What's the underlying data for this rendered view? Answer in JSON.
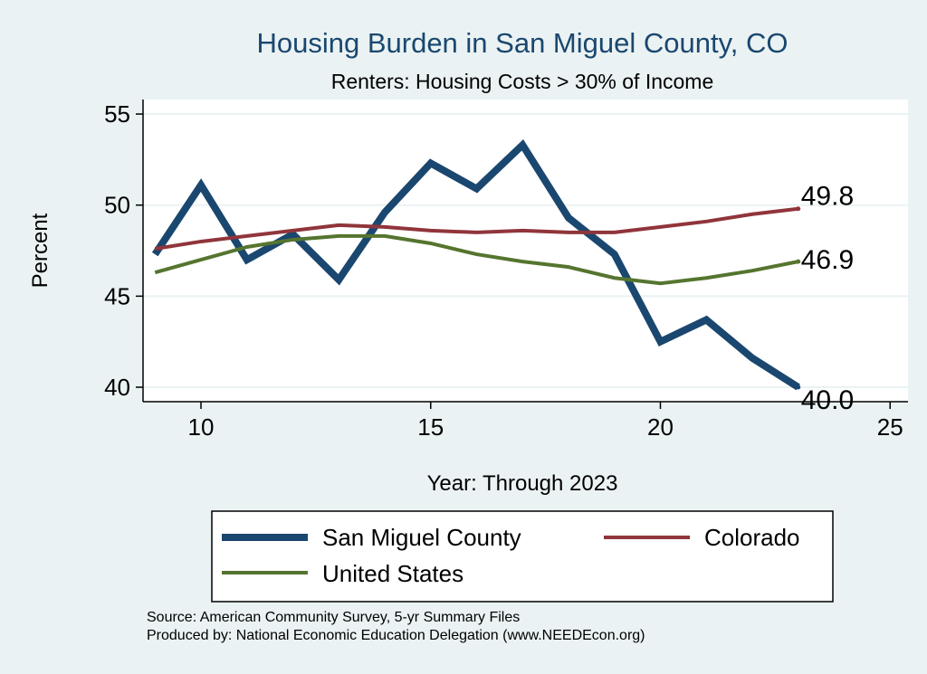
{
  "chart_data": {
    "type": "line",
    "title": "Housing Burden in San Miguel County, CO",
    "subtitle": "Renters: Housing Costs > 30% of Income",
    "xlabel": "Year: Through 2023",
    "ylabel": "Percent",
    "xlim": [
      8.7,
      25.3
    ],
    "ylim": [
      39.3,
      55.8
    ],
    "xticks": [
      "10",
      "15",
      "20",
      "25"
    ],
    "yticks": [
      "40",
      "45",
      "50",
      "55"
    ],
    "grid": true,
    "legend_position": "bottom",
    "x": [
      9,
      10,
      11,
      12,
      13,
      14,
      15,
      16,
      17,
      18,
      19,
      20,
      21,
      22,
      23
    ],
    "series": [
      {
        "name": "San Miguel County",
        "color": "#1a476f",
        "end_label": "40.0",
        "values": [
          47.3,
          51.1,
          47.0,
          48.4,
          45.9,
          49.6,
          52.3,
          50.9,
          53.3,
          49.3,
          47.3,
          42.5,
          43.7,
          41.6,
          40.0
        ]
      },
      {
        "name": "Colorado",
        "color": "#90353b",
        "end_label": "49.8",
        "values": [
          47.6,
          48.0,
          48.3,
          48.6,
          48.9,
          48.8,
          48.6,
          48.5,
          48.6,
          48.5,
          48.5,
          48.8,
          49.1,
          49.5,
          49.8
        ]
      },
      {
        "name": "United States",
        "color": "#55752f",
        "end_label": "46.9",
        "values": [
          46.3,
          47.0,
          47.7,
          48.1,
          48.3,
          48.3,
          47.9,
          47.3,
          46.9,
          46.6,
          46.0,
          45.7,
          46.0,
          46.4,
          46.9
        ]
      }
    ]
  },
  "notes": {
    "source": "Source: American Community Survey, 5-yr Summary Files",
    "produced": "Produced by: National Economic Education Delegation (www.NEEDEcon.org)"
  }
}
